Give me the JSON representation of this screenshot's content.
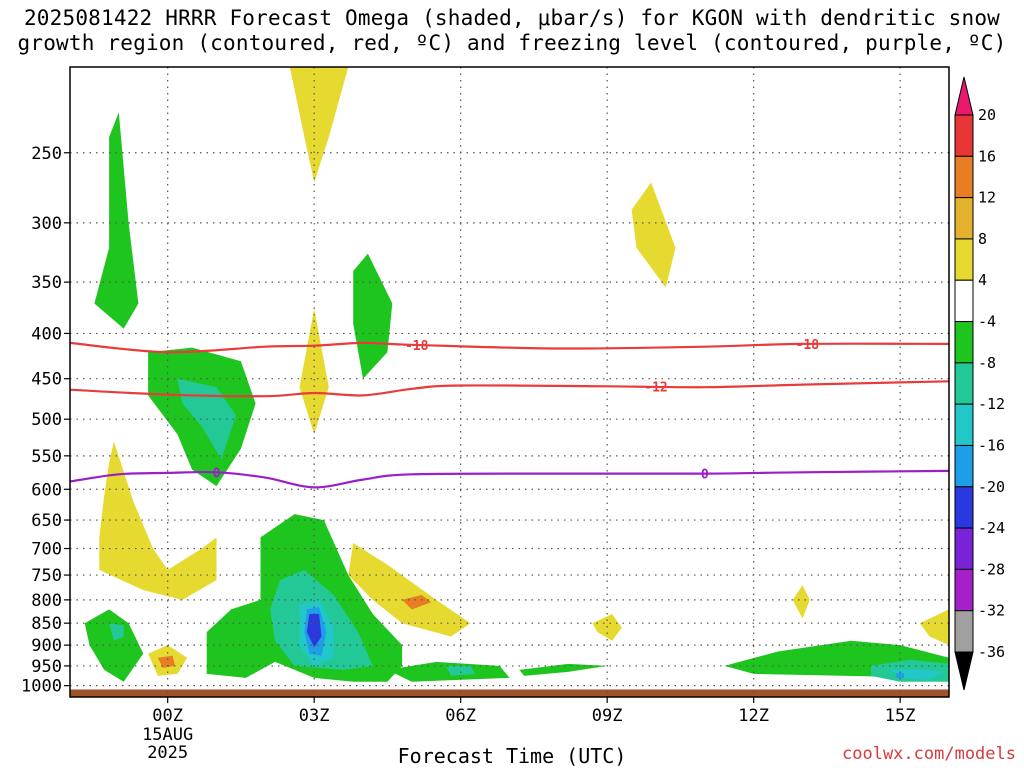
{
  "title_line1": "2025081422 HRRR Forecast Omega (shaded, μbar/s) for KGON with dendritic snow",
  "title_line2": "growth region (contoured, red, ºC) and freezing level (contoured, purple, ºC)",
  "xlabel": "Forecast Time (UTC)",
  "watermark": "coolwx.com/models",
  "chart_data": {
    "type": "contour",
    "title": "2025081422 HRRR Forecast Omega (shaded, μbar/s) for KGON with dendritic snow growth region (contoured, red, ºC) and freezing level (contoured, purple, ºC)",
    "xlabel": "Forecast Time (UTC)",
    "ylabel": "",
    "x_unit": "hours relative to 2025-08-15 00Z",
    "xlim": [
      -2,
      16
    ],
    "x_ticks": [
      {
        "x": 0,
        "label": "00Z",
        "sub": [
          "15AUG",
          "2025"
        ]
      },
      {
        "x": 3,
        "label": "03Z",
        "sub": []
      },
      {
        "x": 6,
        "label": "06Z",
        "sub": []
      },
      {
        "x": 9,
        "label": "09Z",
        "sub": []
      },
      {
        "x": 12,
        "label": "12Z",
        "sub": []
      },
      {
        "x": 15,
        "label": "15Z",
        "sub": []
      }
    ],
    "y_unit": "hPa",
    "y_scale": "log",
    "ylim": [
      1030,
      200
    ],
    "y_ticks": [
      250,
      300,
      350,
      400,
      450,
      500,
      550,
      600,
      650,
      700,
      750,
      800,
      850,
      900,
      950,
      1000
    ],
    "grid": true,
    "colorbar": {
      "labels": [
        "20",
        "16",
        "12",
        "8",
        "4",
        "-4",
        "-8",
        "-12",
        "-16",
        "-20",
        "-24",
        "-28",
        "-32",
        "-36"
      ],
      "colors": [
        "#e8186e",
        "#e83535",
        "#e87d22",
        "#e3b12b",
        "#e6d930",
        "#ffffff",
        "#1fc51f",
        "#22c996",
        "#22c8c8",
        "#1f9ee8",
        "#2a38e0",
        "#7a22d8",
        "#a520c8",
        "#a0a0a0",
        "#000000"
      ]
    },
    "ground_color": "#a0522d",
    "temperature_contours": [
      {
        "label": "-18",
        "color": "#e83c3c",
        "points": [
          [
            -2,
            410
          ],
          [
            0,
            420
          ],
          [
            2,
            414
          ],
          [
            3,
            413
          ],
          [
            4,
            410
          ],
          [
            5,
            412
          ],
          [
            8,
            416
          ],
          [
            11,
            414
          ],
          [
            13,
            411
          ],
          [
            16,
            411
          ]
        ],
        "label_x": [
          5.1,
          13.1
        ]
      },
      {
        "label": "-12",
        "color": "#e83c3c",
        "points": [
          [
            -2,
            463
          ],
          [
            0,
            469
          ],
          [
            2,
            471
          ],
          [
            3,
            467
          ],
          [
            4,
            470
          ],
          [
            5,
            462
          ],
          [
            6,
            458
          ],
          [
            9,
            459
          ],
          [
            11,
            460
          ],
          [
            13,
            457
          ],
          [
            16,
            453
          ]
        ],
        "label_x": [
          10.0
        ]
      },
      {
        "label": "0",
        "color": "#9b1fc8",
        "points": [
          [
            -2,
            588
          ],
          [
            -1,
            577
          ],
          [
            0,
            575
          ],
          [
            1,
            574
          ],
          [
            2,
            582
          ],
          [
            3,
            597
          ],
          [
            4,
            585
          ],
          [
            5,
            577
          ],
          [
            8,
            576
          ],
          [
            11,
            576
          ],
          [
            13,
            574
          ],
          [
            16,
            572
          ]
        ],
        "label_x": [
          1.0,
          11.0
        ]
      }
    ],
    "omega_regions": [
      {
        "color": "#e6d930",
        "points": [
          [
            2.5,
            200
          ],
          [
            3.7,
            200
          ],
          [
            3.3,
            240
          ],
          [
            3.0,
            270
          ],
          [
            2.8,
            240
          ]
        ]
      },
      {
        "color": "#e6d930",
        "points": [
          [
            9.5,
            290
          ],
          [
            9.9,
            270
          ],
          [
            10.4,
            320
          ],
          [
            10.2,
            355
          ],
          [
            9.6,
            320
          ]
        ]
      },
      {
        "color": "#e6d930",
        "points": [
          [
            2.7,
            460
          ],
          [
            3.0,
            375
          ],
          [
            3.3,
            460
          ],
          [
            3.0,
            520
          ]
        ]
      },
      {
        "color": "#1fc51f",
        "points": [
          [
            -1.2,
            240
          ],
          [
            -1.0,
            225
          ],
          [
            -0.8,
            300
          ],
          [
            -0.6,
            370
          ],
          [
            -0.9,
            395
          ],
          [
            -1.5,
            370
          ],
          [
            -1.2,
            320
          ]
        ]
      },
      {
        "color": "#1fc51f",
        "points": [
          [
            3.8,
            340
          ],
          [
            4.1,
            325
          ],
          [
            4.6,
            370
          ],
          [
            4.5,
            420
          ],
          [
            4.0,
            450
          ],
          [
            3.8,
            390
          ]
        ]
      },
      {
        "color": "#1fc51f",
        "points": [
          [
            -0.4,
            420
          ],
          [
            0.5,
            415
          ],
          [
            1.5,
            430
          ],
          [
            1.8,
            480
          ],
          [
            1.5,
            540
          ],
          [
            1.0,
            595
          ],
          [
            0.5,
            570
          ],
          [
            0.2,
            520
          ],
          [
            -0.4,
            470
          ]
        ]
      },
      {
        "color": "#22c996",
        "points": [
          [
            0.2,
            450
          ],
          [
            1.0,
            460
          ],
          [
            1.4,
            495
          ],
          [
            1.1,
            555
          ],
          [
            0.7,
            510
          ],
          [
            0.3,
            480
          ]
        ]
      },
      {
        "color": "#e6d930",
        "points": [
          [
            -1.2,
            560
          ],
          [
            -1.1,
            530
          ],
          [
            -0.7,
            620
          ],
          [
            -0.3,
            700
          ],
          [
            0,
            740
          ],
          [
            0.7,
            700
          ],
          [
            1.0,
            680
          ],
          [
            1.0,
            760
          ],
          [
            0.3,
            800
          ],
          [
            -0.5,
            780
          ],
          [
            -1.4,
            740
          ],
          [
            -1.4,
            680
          ],
          [
            -1.3,
            610
          ]
        ]
      },
      {
        "color": "#e6d930",
        "points": [
          [
            3.8,
            690
          ],
          [
            4.5,
            730
          ],
          [
            5.5,
            800
          ],
          [
            6.2,
            850
          ],
          [
            5.8,
            880
          ],
          [
            4.8,
            850
          ],
          [
            4.2,
            800
          ],
          [
            3.7,
            750
          ]
        ]
      },
      {
        "color": "#e87d22",
        "points": [
          [
            4.8,
            800
          ],
          [
            5.2,
            790
          ],
          [
            5.4,
            805
          ],
          [
            5.0,
            820
          ]
        ]
      },
      {
        "color": "#1fc51f",
        "points": [
          [
            1.9,
            680
          ],
          [
            2.6,
            640
          ],
          [
            3.2,
            650
          ],
          [
            3.7,
            750
          ],
          [
            4.2,
            830
          ],
          [
            4.8,
            900
          ],
          [
            4.8,
            950
          ],
          [
            4.5,
            990
          ],
          [
            3.8,
            990
          ],
          [
            3.0,
            980
          ],
          [
            2.2,
            940
          ],
          [
            1.6,
            980
          ],
          [
            0.8,
            970
          ],
          [
            0.8,
            870
          ],
          [
            1.3,
            820
          ],
          [
            1.9,
            800
          ]
        ]
      },
      {
        "color": "#22c996",
        "points": [
          [
            2.3,
            760
          ],
          [
            2.8,
            740
          ],
          [
            3.4,
            790
          ],
          [
            3.9,
            870
          ],
          [
            4.2,
            950
          ],
          [
            3.6,
            960
          ],
          [
            2.6,
            950
          ],
          [
            2.2,
            890
          ],
          [
            2.1,
            820
          ]
        ]
      },
      {
        "color": "#22c8c8",
        "points": [
          [
            2.7,
            810
          ],
          [
            3.1,
            800
          ],
          [
            3.4,
            860
          ],
          [
            3.4,
            930
          ],
          [
            3.0,
            950
          ],
          [
            2.7,
            900
          ]
        ]
      },
      {
        "color": "#1f9ee8",
        "points": [
          [
            2.85,
            820
          ],
          [
            3.1,
            815
          ],
          [
            3.25,
            870
          ],
          [
            3.15,
            925
          ],
          [
            2.9,
            920
          ],
          [
            2.8,
            870
          ]
        ]
      },
      {
        "color": "#2a38e0",
        "points": [
          [
            2.9,
            830
          ],
          [
            3.1,
            830
          ],
          [
            3.15,
            880
          ],
          [
            3.0,
            905
          ],
          [
            2.85,
            870
          ]
        ]
      },
      {
        "color": "#1fc51f",
        "points": [
          [
            -1.7,
            850
          ],
          [
            -1.2,
            820
          ],
          [
            -0.8,
            850
          ],
          [
            -0.5,
            920
          ],
          [
            -0.9,
            990
          ],
          [
            -1.3,
            960
          ],
          [
            -1.6,
            900
          ]
        ]
      },
      {
        "color": "#22c996",
        "points": [
          [
            -1.2,
            850
          ],
          [
            -0.9,
            855
          ],
          [
            -0.9,
            880
          ],
          [
            -1.1,
            890
          ]
        ]
      },
      {
        "color": "#e6d930",
        "points": [
          [
            -0.4,
            920
          ],
          [
            0,
            900
          ],
          [
            0.4,
            930
          ],
          [
            0.2,
            970
          ],
          [
            -0.2,
            975
          ]
        ]
      },
      {
        "color": "#e87d22",
        "points": [
          [
            -0.2,
            930
          ],
          [
            0.1,
            925
          ],
          [
            0.15,
            950
          ],
          [
            -0.1,
            955
          ]
        ]
      },
      {
        "color": "#1fc51f",
        "points": [
          [
            4.5,
            960
          ],
          [
            5.5,
            940
          ],
          [
            6.8,
            950
          ],
          [
            7.0,
            980
          ],
          [
            5.0,
            990
          ]
        ]
      },
      {
        "color": "#22c996",
        "points": [
          [
            5.7,
            950
          ],
          [
            6.2,
            950
          ],
          [
            6.3,
            970
          ],
          [
            5.8,
            975
          ]
        ]
      },
      {
        "color": "#1fc51f",
        "points": [
          [
            7.2,
            960
          ],
          [
            8.2,
            945
          ],
          [
            9.0,
            950
          ],
          [
            8.2,
            965
          ],
          [
            7.3,
            975
          ]
        ]
      },
      {
        "color": "#e6d930",
        "points": [
          [
            8.7,
            850
          ],
          [
            9.1,
            830
          ],
          [
            9.3,
            860
          ],
          [
            9.1,
            890
          ],
          [
            8.8,
            870
          ]
        ]
      },
      {
        "color": "#e6d930",
        "points": [
          [
            12.8,
            800
          ],
          [
            13.0,
            770
          ],
          [
            13.15,
            800
          ],
          [
            13.0,
            840
          ]
        ]
      },
      {
        "color": "#e6d930",
        "points": [
          [
            15.4,
            850
          ],
          [
            16.0,
            820
          ],
          [
            16.0,
            900
          ],
          [
            15.6,
            880
          ]
        ]
      },
      {
        "color": "#1fc51f",
        "points": [
          [
            11.4,
            950
          ],
          [
            12.5,
            915
          ],
          [
            14.0,
            890
          ],
          [
            15.0,
            900
          ],
          [
            16.0,
            930
          ],
          [
            16.0,
            980
          ],
          [
            12.0,
            970
          ]
        ]
      },
      {
        "color": "#22c996",
        "points": [
          [
            14.4,
            950
          ],
          [
            15.2,
            935
          ],
          [
            16.0,
            945
          ],
          [
            16.0,
            990
          ],
          [
            15.0,
            990
          ],
          [
            14.4,
            975
          ]
        ]
      },
      {
        "color": "#22c8c8",
        "points": [
          [
            14.8,
            960
          ],
          [
            15.4,
            958
          ],
          [
            15.9,
            965
          ],
          [
            15.6,
            985
          ],
          [
            15.0,
            980
          ]
        ]
      },
      {
        "color": "#1f9ee8",
        "points": [
          [
            14.92,
            968
          ],
          [
            15.08,
            968
          ],
          [
            15.08,
            980
          ],
          [
            14.92,
            980
          ]
        ]
      }
    ]
  }
}
